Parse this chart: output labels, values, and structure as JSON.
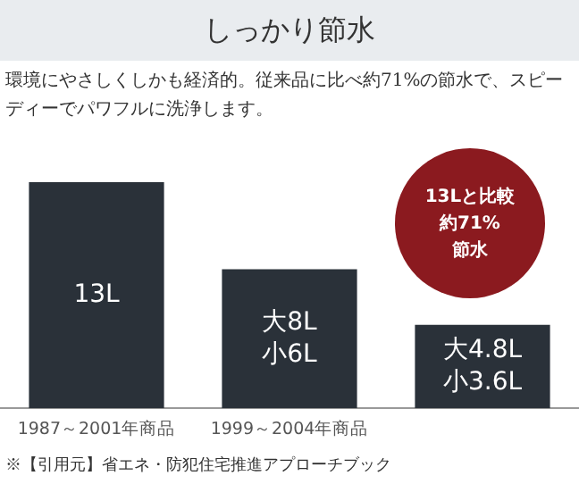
{
  "chart_data": {
    "type": "bar",
    "title": "しっかり節水",
    "subtitle": "環境にやさしくしかも経済的。従来品に比べ約71%の節水で、スピーディーでパワフルに洗浄します。",
    "categories": [
      "1987～2001年商品",
      "1999～2004年商品",
      null
    ],
    "values": [
      13,
      8,
      4.8
    ],
    "tick_labels": "x",
    "color": "#2a3139",
    "value_labels": [
      "13L",
      "大8L\n小6L",
      "大4.8L\n小3.6L"
    ],
    "annotations": [
      "13Lと比較",
      "約71%",
      "節水",
      "※【引用元】省エネ・防犯住宅推進アプローチブック"
    ],
    "grid": false,
    "legend": false
  }
}
